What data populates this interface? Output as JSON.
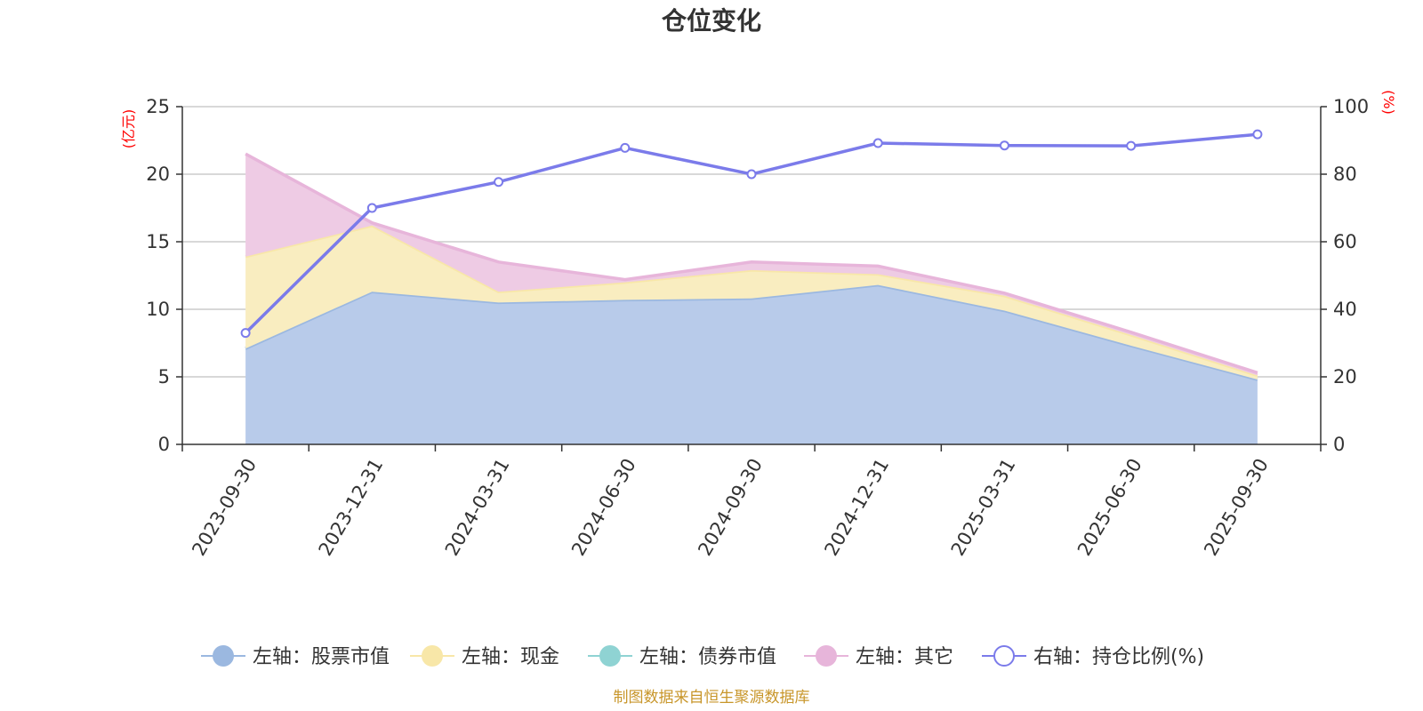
{
  "chart_data": {
    "type": "area",
    "title": "仓位变化",
    "categories": [
      "2023-09-30",
      "2023-12-31",
      "2024-03-31",
      "2024-06-30",
      "2024-09-30",
      "2024-12-31",
      "2025-03-31",
      "2025-06-30",
      "2025-09-30"
    ],
    "left_axis": {
      "unit": "(亿元)",
      "ylim": [
        0,
        25
      ],
      "ticks": [
        0,
        5,
        10,
        15,
        20,
        25
      ]
    },
    "right_axis": {
      "unit": "(%)",
      "ylim": [
        0,
        100
      ],
      "ticks": [
        0,
        20,
        40,
        60,
        80,
        100
      ]
    },
    "series": [
      {
        "name": "左轴：股票市值",
        "axis": "left",
        "kind": "stacked-area",
        "values": [
          7.1,
          11.3,
          10.5,
          10.7,
          10.8,
          11.8,
          9.9,
          7.3,
          4.8
        ]
      },
      {
        "name": "左轴：现金",
        "axis": "left",
        "kind": "stacked-area",
        "values": [
          6.8,
          4.9,
          0.8,
          1.3,
          2.1,
          0.8,
          1.1,
          0.8,
          0.3
        ]
      },
      {
        "name": "左轴：债券市值",
        "axis": "left",
        "kind": "stacked-area",
        "values": [
          0,
          0,
          0,
          0,
          0,
          0,
          0,
          0,
          0
        ]
      },
      {
        "name": "左轴：其它",
        "axis": "left",
        "kind": "stacked-area",
        "values": [
          7.6,
          0.2,
          2.2,
          0.2,
          0.6,
          0.6,
          0.2,
          0.2,
          0.2
        ]
      },
      {
        "name": "右轴：持仓比例(%)",
        "axis": "right",
        "kind": "line",
        "values": [
          33.0,
          70.0,
          77.7,
          87.8,
          80.0,
          89.2,
          88.5,
          88.4,
          91.8
        ]
      }
    ],
    "colors": [
      "#9bb8e0",
      "#f8e7a8",
      "#8fd3d3",
      "#e7b5da",
      "#7b7bea"
    ],
    "fill_colors": [
      "#b8cbea",
      "#f9edc0",
      "#a9dede",
      "#eecbe4"
    ],
    "source": "制图数据来自恒生聚源数据库"
  }
}
